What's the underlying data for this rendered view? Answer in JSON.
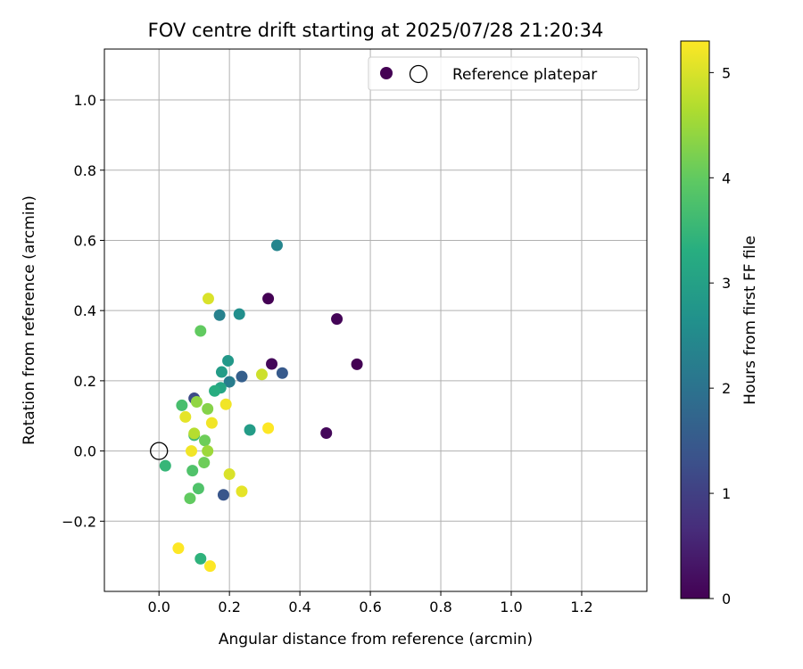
{
  "chart_data": {
    "type": "scatter",
    "title": "FOV centre drift starting at 2025/07/28 21:20:34",
    "xlabel": "Angular distance from reference (arcmin)",
    "ylabel": "Rotation from reference (arcmin)",
    "xlim": [
      -0.155,
      1.385
    ],
    "ylim": [
      -0.4,
      1.145
    ],
    "xticks": [
      0.0,
      0.2,
      0.4,
      0.6,
      0.8,
      1.0,
      1.2
    ],
    "xtick_labels": [
      "0.0",
      "0.2",
      "0.4",
      "0.6",
      "0.8",
      "1.0",
      "1.2"
    ],
    "yticks": [
      -0.2,
      0.0,
      0.2,
      0.4,
      0.6,
      0.8,
      1.0
    ],
    "ytick_labels": [
      "−0.2",
      "0.0",
      "0.2",
      "0.4",
      "0.6",
      "0.8",
      "1.0"
    ],
    "grid": true,
    "legend": {
      "placement": "upper-right",
      "entries": [
        {
          "label": "",
          "marker": "filled-circle",
          "color": "#440154"
        },
        {
          "label": "Reference platepar",
          "marker": "open-circle",
          "color": "#000000"
        }
      ]
    },
    "colorbar": {
      "label": "Hours from first FF file",
      "colormap": "viridis",
      "range": [
        0,
        5.3
      ],
      "ticks": [
        0,
        1,
        2,
        3,
        4,
        5
      ],
      "tick_labels": [
        "0",
        "1",
        "2",
        "3",
        "4",
        "5"
      ]
    },
    "reference_point": {
      "x": 0.0,
      "y": 0.0,
      "name": "Reference platepar"
    },
    "series": [
      {
        "points": [
          {
            "x": 0.31,
            "y": 0.434,
            "t": 0.0
          },
          {
            "x": 0.505,
            "y": 0.376,
            "t": 0.05
          },
          {
            "x": 0.562,
            "y": 0.247,
            "t": 0.0
          },
          {
            "x": 0.32,
            "y": 0.248,
            "t": 0.1
          },
          {
            "x": 0.475,
            "y": 0.051,
            "t": 0.1
          },
          {
            "x": 0.35,
            "y": 0.222,
            "t": 1.5
          },
          {
            "x": 0.235,
            "y": 0.212,
            "t": 1.6
          },
          {
            "x": 0.1,
            "y": 0.15,
            "t": 1.2
          },
          {
            "x": 0.183,
            "y": -0.125,
            "t": 1.4
          },
          {
            "x": 0.2,
            "y": 0.197,
            "t": 2.2
          },
          {
            "x": 0.335,
            "y": 0.586,
            "t": 2.4
          },
          {
            "x": 0.172,
            "y": 0.387,
            "t": 2.3
          },
          {
            "x": 0.228,
            "y": 0.39,
            "t": 2.6
          },
          {
            "x": 0.196,
            "y": 0.257,
            "t": 2.8
          },
          {
            "x": 0.178,
            "y": 0.225,
            "t": 2.9
          },
          {
            "x": 0.258,
            "y": 0.06,
            "t": 2.9
          },
          {
            "x": 0.175,
            "y": 0.18,
            "t": 3.1
          },
          {
            "x": 0.158,
            "y": 0.171,
            "t": 3.3
          },
          {
            "x": 0.018,
            "y": -0.042,
            "t": 3.5
          },
          {
            "x": 0.065,
            "y": 0.13,
            "t": 3.7
          },
          {
            "x": 0.118,
            "y": -0.307,
            "t": 3.4
          },
          {
            "x": 0.1,
            "y": 0.045,
            "t": 3.6
          },
          {
            "x": 0.095,
            "y": -0.056,
            "t": 3.8
          },
          {
            "x": 0.118,
            "y": 0.342,
            "t": 4.0
          },
          {
            "x": 0.088,
            "y": -0.135,
            "t": 4.0
          },
          {
            "x": 0.112,
            "y": -0.107,
            "t": 3.8
          },
          {
            "x": 0.128,
            "y": -0.033,
            "t": 4.1
          },
          {
            "x": 0.13,
            "y": 0.03,
            "t": 4.1
          },
          {
            "x": 0.138,
            "y": 0.12,
            "t": 4.3
          },
          {
            "x": 0.107,
            "y": 0.14,
            "t": 4.4
          },
          {
            "x": 0.138,
            "y": 0.0,
            "t": 4.5
          },
          {
            "x": 0.1,
            "y": 0.05,
            "t": 4.7
          },
          {
            "x": 0.14,
            "y": 0.434,
            "t": 5.0
          },
          {
            "x": 0.292,
            "y": 0.218,
            "t": 4.9
          },
          {
            "x": 0.19,
            "y": 0.133,
            "t": 5.2
          },
          {
            "x": 0.075,
            "y": 0.097,
            "t": 5.1
          },
          {
            "x": 0.15,
            "y": 0.08,
            "t": 5.2
          },
          {
            "x": 0.31,
            "y": 0.065,
            "t": 5.3
          },
          {
            "x": 0.092,
            "y": 0.0,
            "t": 5.2
          },
          {
            "x": 0.2,
            "y": -0.066,
            "t": 5.0
          },
          {
            "x": 0.235,
            "y": -0.115,
            "t": 5.1
          },
          {
            "x": 0.055,
            "y": -0.277,
            "t": 5.3
          },
          {
            "x": 0.145,
            "y": -0.328,
            "t": 5.3
          }
        ]
      }
    ]
  }
}
